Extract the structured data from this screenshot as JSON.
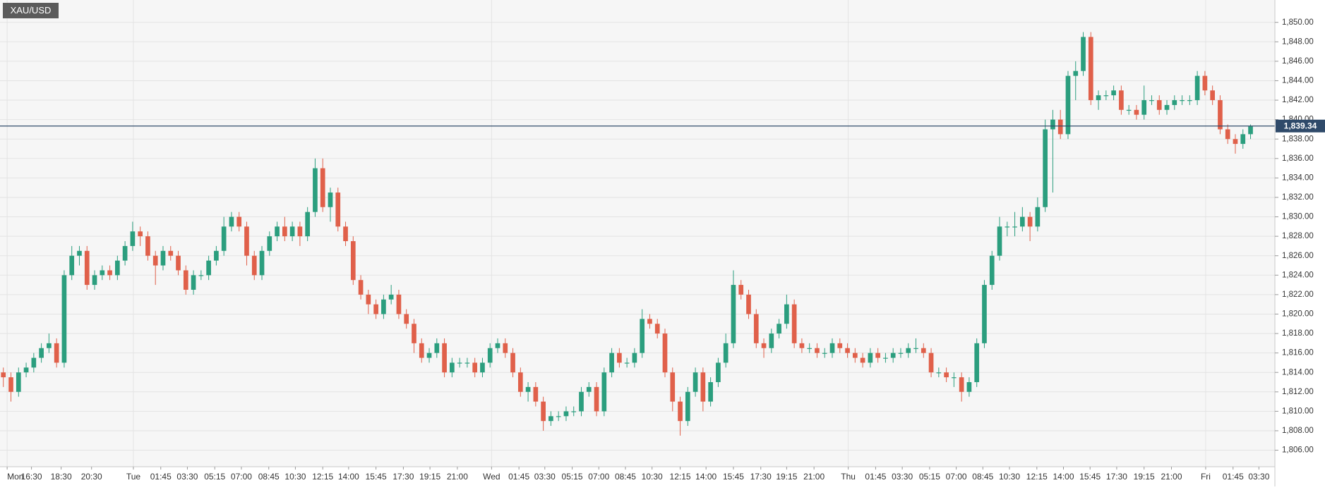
{
  "chart_data": {
    "type": "candlestick",
    "title": "XAU/USD",
    "up_color": "#2b9e7e",
    "down_color": "#e0604a",
    "grid": true,
    "open": [
      1814,
      1813.5,
      1812,
      1814,
      1814.5,
      1815.5,
      1816.5,
      1817,
      1815,
      1824,
      1826,
      1826.5,
      1823,
      1824,
      1824.5,
      1824,
      1825.5,
      1827,
      1828.5,
      1828,
      1826,
      1825,
      1826.5,
      1826,
      1824.5,
      1822.5,
      1824,
      1824,
      1825.5,
      1826.5,
      1829,
      1830,
      1829,
      1826,
      1824,
      1826.5,
      1828,
      1829,
      1828,
      1829,
      1828,
      1830.5,
      1835,
      1831,
      1832.5,
      1829,
      1827.5,
      1823.5,
      1822,
      1821,
      1820,
      1821.5,
      1822,
      1820,
      1819,
      1817,
      1815.5,
      1816,
      1817,
      1814,
      1815,
      1815,
      1815,
      1814,
      1815,
      1816.5,
      1817,
      1816,
      1814,
      1812,
      1812.5,
      1811,
      1809,
      1809.5,
      1809.5,
      1810,
      1810,
      1812,
      1812.5,
      1810,
      1814,
      1816,
      1815,
      1815,
      1816,
      1819.5,
      1819,
      1818,
      1814,
      1811,
      1809,
      1812,
      1814,
      1811,
      1813,
      1815,
      1817,
      1823,
      1822,
      1820,
      1817,
      1816.5,
      1818,
      1819,
      1821,
      1817,
      1816.5,
      1816.5,
      1816,
      1816,
      1817,
      1816.5,
      1816,
      1815.5,
      1815,
      1816,
      1815.5,
      1815.5,
      1816,
      1816,
      1816.5,
      1816.5,
      1816,
      1814,
      1814,
      1813.5,
      1813.5,
      1812,
      1813,
      1817,
      1823,
      1826,
      1829,
      1829,
      1829,
      1830,
      1829,
      1831,
      1839,
      1840,
      1838.5,
      1844.5,
      1845,
      1848.5,
      1842,
      1842.5,
      1842.5,
      1843,
      1841,
      1841,
      1840.5,
      1842,
      1842,
      1841,
      1841.5,
      1842,
      1842,
      1842,
      1844.5,
      1843,
      1842,
      1839,
      1838,
      1837.5,
      1838.5
    ],
    "high": [
      1814.5,
      1814,
      1814.5,
      1815,
      1816,
      1817,
      1818,
      1817.5,
      1824.5,
      1827,
      1827,
      1827,
      1824.5,
      1825,
      1825,
      1826,
      1827.5,
      1829.5,
      1829,
      1828.5,
      1826.5,
      1827,
      1827,
      1826.5,
      1825,
      1824.5,
      1824.5,
      1826,
      1827,
      1830,
      1830.5,
      1830.5,
      1829.5,
      1826.5,
      1827,
      1828.5,
      1829.5,
      1830,
      1829.5,
      1829.5,
      1831,
      1836,
      1836,
      1833,
      1833,
      1829.5,
      1828,
      1824,
      1822.5,
      1821.5,
      1822,
      1823,
      1822.5,
      1820.5,
      1819.5,
      1817.5,
      1816.5,
      1817.5,
      1817.5,
      1815.5,
      1815.5,
      1815.5,
      1815.5,
      1815.5,
      1817,
      1817.5,
      1817.5,
      1816.5,
      1814.5,
      1813,
      1813,
      1811.5,
      1810,
      1810,
      1810.5,
      1810.5,
      1812.5,
      1813,
      1813,
      1814.5,
      1816.5,
      1816.5,
      1815.5,
      1816.5,
      1820.5,
      1820,
      1819.5,
      1818.5,
      1814.5,
      1811.5,
      1812.5,
      1814.5,
      1814.5,
      1813.5,
      1815.5,
      1818,
      1824.5,
      1823.5,
      1822.5,
      1820.5,
      1817.5,
      1818.5,
      1819.5,
      1822,
      1821.5,
      1817.5,
      1817,
      1817,
      1816.5,
      1817.5,
      1817.5,
      1817,
      1816.5,
      1816,
      1816.5,
      1816.5,
      1816,
      1816.5,
      1816.5,
      1817,
      1817.5,
      1817,
      1816.5,
      1814.5,
      1814.5,
      1814,
      1814,
      1813.5,
      1817.5,
      1823.5,
      1826.5,
      1830,
      1829.5,
      1830.5,
      1831,
      1830.5,
      1832,
      1840,
      1841,
      1841,
      1845,
      1846,
      1849,
      1849,
      1843,
      1843,
      1843.5,
      1843.5,
      1841.5,
      1841.5,
      1843.5,
      1842.5,
      1842.5,
      1842,
      1842.5,
      1842.5,
      1842.5,
      1845,
      1845,
      1843.5,
      1842.5,
      1839.5,
      1838.5,
      1839,
      1839.5
    ],
    "low": [
      1812.5,
      1811,
      1811.5,
      1813.5,
      1814,
      1815,
      1816,
      1814.5,
      1814.5,
      1823.5,
      1825,
      1822.5,
      1822.5,
      1823.5,
      1823.5,
      1823.5,
      1825,
      1826.5,
      1827,
      1825.5,
      1823,
      1824.5,
      1825.5,
      1824,
      1822,
      1822,
      1823.5,
      1823.5,
      1825,
      1826,
      1828.5,
      1828.5,
      1825,
      1823.5,
      1823.5,
      1826,
      1827.5,
      1827.5,
      1827.5,
      1827,
      1827.5,
      1830,
      1830.5,
      1829.5,
      1828.5,
      1827,
      1823,
      1821.5,
      1820,
      1819.5,
      1819.5,
      1821,
      1819.5,
      1818.5,
      1816,
      1815,
      1815,
      1815.5,
      1813.5,
      1813.5,
      1814.5,
      1814.5,
      1813.5,
      1813.5,
      1814.5,
      1816,
      1815.5,
      1813.5,
      1811.5,
      1811,
      1810.5,
      1808,
      1808.5,
      1809,
      1809,
      1809.5,
      1809.5,
      1811.5,
      1809.5,
      1809.5,
      1813.5,
      1814.5,
      1814.5,
      1814.5,
      1815.5,
      1818.5,
      1817.5,
      1813.5,
      1810,
      1807.5,
      1808.5,
      1811.5,
      1810,
      1810.5,
      1812.5,
      1814.5,
      1816.5,
      1821.5,
      1819.5,
      1816.5,
      1815.5,
      1816,
      1817.5,
      1818.5,
      1816.5,
      1816,
      1816,
      1815.5,
      1815.5,
      1815.5,
      1816,
      1815.5,
      1815,
      1814.5,
      1814.5,
      1815,
      1815,
      1815,
      1815.5,
      1815.5,
      1816,
      1815.5,
      1813.5,
      1813.5,
      1813,
      1812.5,
      1811,
      1811.5,
      1812.5,
      1816.5,
      1822.5,
      1825.5,
      1828,
      1828,
      1828.5,
      1827.5,
      1828.5,
      1830.5,
      1832.5,
      1838,
      1838,
      1842,
      1844.5,
      1841.5,
      1841,
      1842,
      1842,
      1840.5,
      1840.5,
      1840,
      1840,
      1841.5,
      1840.5,
      1840.5,
      1841,
      1841.5,
      1841.5,
      1841.5,
      1842.5,
      1841.5,
      1838.5,
      1837.5,
      1836.5,
      1837,
      1838
    ],
    "close": [
      1813.5,
      1812,
      1814,
      1814.5,
      1815.5,
      1816.5,
      1817,
      1815,
      1824,
      1826,
      1826.5,
      1823,
      1824,
      1824.5,
      1824,
      1825.5,
      1827,
      1828.5,
      1828,
      1826,
      1825,
      1826.5,
      1826,
      1824.5,
      1822.5,
      1824,
      1824,
      1825.5,
      1826.5,
      1829,
      1830,
      1829,
      1826,
      1824,
      1826.5,
      1828,
      1829,
      1828,
      1829,
      1828,
      1830.5,
      1835,
      1831,
      1832.5,
      1829,
      1827.5,
      1823.5,
      1822,
      1821,
      1820,
      1821.5,
      1822,
      1820,
      1819,
      1817,
      1815.5,
      1816,
      1817,
      1814,
      1815,
      1815,
      1815,
      1814,
      1815,
      1816.5,
      1817,
      1816,
      1814,
      1812,
      1812.5,
      1811,
      1809,
      1809.5,
      1809.5,
      1810,
      1810,
      1812,
      1812.5,
      1810,
      1814,
      1816,
      1815,
      1815,
      1816,
      1819.5,
      1819,
      1818,
      1814,
      1811,
      1809,
      1812,
      1814,
      1811,
      1813,
      1815,
      1817,
      1823,
      1822,
      1820,
      1817,
      1816.5,
      1818,
      1819,
      1821,
      1817,
      1816.5,
      1816.5,
      1816,
      1816,
      1817,
      1816.5,
      1816,
      1815.5,
      1815,
      1816,
      1815.5,
      1815.5,
      1816,
      1816,
      1816.5,
      1816.5,
      1816,
      1814,
      1814,
      1813.5,
      1813.5,
      1812,
      1813,
      1817,
      1823,
      1826,
      1829,
      1829,
      1829,
      1830,
      1829,
      1831,
      1839,
      1840,
      1838.5,
      1844.5,
      1845,
      1848.5,
      1842,
      1842.5,
      1842.5,
      1843,
      1841,
      1841,
      1840.5,
      1842,
      1842,
      1841,
      1841.5,
      1842,
      1842,
      1842,
      1844.5,
      1843,
      1842,
      1839,
      1838,
      1837.5,
      1838.5,
      1839.3
    ],
    "last_price": {
      "value": 1839.34,
      "label": "1,839.34"
    },
    "price_line_color": "#2f4a6a",
    "ylim": [
      1804.3,
      1852.3
    ],
    "yticks": [
      {
        "value": 1806,
        "label": "1,806.00"
      },
      {
        "value": 1808,
        "label": "1,808.00"
      },
      {
        "value": 1810,
        "label": "1,810.00"
      },
      {
        "value": 1812,
        "label": "1,812.00"
      },
      {
        "value": 1814,
        "label": "1,814.00"
      },
      {
        "value": 1816,
        "label": "1,816.00"
      },
      {
        "value": 1818,
        "label": "1,818.00"
      },
      {
        "value": 1820,
        "label": "1,820.00"
      },
      {
        "value": 1822,
        "label": "1,822.00"
      },
      {
        "value": 1824,
        "label": "1,824.00"
      },
      {
        "value": 1826,
        "label": "1,826.00"
      },
      {
        "value": 1828,
        "label": "1,828.00"
      },
      {
        "value": 1830,
        "label": "1,830.00"
      },
      {
        "value": 1832,
        "label": "1,832.00"
      },
      {
        "value": 1834,
        "label": "1,834.00"
      },
      {
        "value": 1836,
        "label": "1,836.00"
      },
      {
        "value": 1838,
        "label": "1,838.00"
      },
      {
        "value": 1840,
        "label": "1,840.00"
      },
      {
        "value": 1842,
        "label": "1,842.00"
      },
      {
        "value": 1844,
        "label": "1,844.00"
      },
      {
        "value": 1846,
        "label": "1,846.00"
      },
      {
        "value": 1848,
        "label": "1,848.00"
      },
      {
        "value": 1850,
        "label": "1,850.00"
      }
    ],
    "xlim": [
      -0.44,
      167.2
    ],
    "xticks": [
      {
        "value": 0.5,
        "label": "Mon"
      },
      {
        "value": 3.7,
        "label": "16:30"
      },
      {
        "value": 7.6,
        "label": "18:30"
      },
      {
        "value": 11.6,
        "label": "20:30"
      },
      {
        "value": 17.1,
        "label": "Tue"
      },
      {
        "value": 20.7,
        "label": "01:45"
      },
      {
        "value": 24.2,
        "label": "03:30"
      },
      {
        "value": 27.8,
        "label": "05:15"
      },
      {
        "value": 31.3,
        "label": "07:00"
      },
      {
        "value": 34.9,
        "label": "08:45"
      },
      {
        "value": 38.4,
        "label": "10:30"
      },
      {
        "value": 42,
        "label": "12:15"
      },
      {
        "value": 45.4,
        "label": "14:00"
      },
      {
        "value": 49,
        "label": "15:45"
      },
      {
        "value": 52.6,
        "label": "17:30"
      },
      {
        "value": 56.1,
        "label": "19:15"
      },
      {
        "value": 59.7,
        "label": "21:00"
      },
      {
        "value": 64.2,
        "label": "Wed"
      },
      {
        "value": 67.8,
        "label": "01:45"
      },
      {
        "value": 71.2,
        "label": "03:30"
      },
      {
        "value": 74.8,
        "label": "05:15"
      },
      {
        "value": 78.3,
        "label": "07:00"
      },
      {
        "value": 81.8,
        "label": "08:45"
      },
      {
        "value": 85.3,
        "label": "10:30"
      },
      {
        "value": 89,
        "label": "12:15"
      },
      {
        "value": 92.4,
        "label": "14:00"
      },
      {
        "value": 96,
        "label": "15:45"
      },
      {
        "value": 99.6,
        "label": "17:30"
      },
      {
        "value": 103,
        "label": "19:15"
      },
      {
        "value": 106.6,
        "label": "21:00"
      },
      {
        "value": 111.1,
        "label": "Thu"
      },
      {
        "value": 114.7,
        "label": "01:45"
      },
      {
        "value": 118.2,
        "label": "03:30"
      },
      {
        "value": 121.8,
        "label": "05:15"
      },
      {
        "value": 125.3,
        "label": "07:00"
      },
      {
        "value": 128.8,
        "label": "08:45"
      },
      {
        "value": 132.3,
        "label": "10:30"
      },
      {
        "value": 135.9,
        "label": "12:15"
      },
      {
        "value": 139.4,
        "label": "14:00"
      },
      {
        "value": 142.9,
        "label": "15:45"
      },
      {
        "value": 146.4,
        "label": "17:30"
      },
      {
        "value": 150,
        "label": "19:15"
      },
      {
        "value": 153.6,
        "label": "21:00"
      },
      {
        "value": 158.1,
        "label": "Fri"
      },
      {
        "value": 161.7,
        "label": "01:45"
      },
      {
        "value": 165.1,
        "label": "03:30"
      }
    ]
  }
}
